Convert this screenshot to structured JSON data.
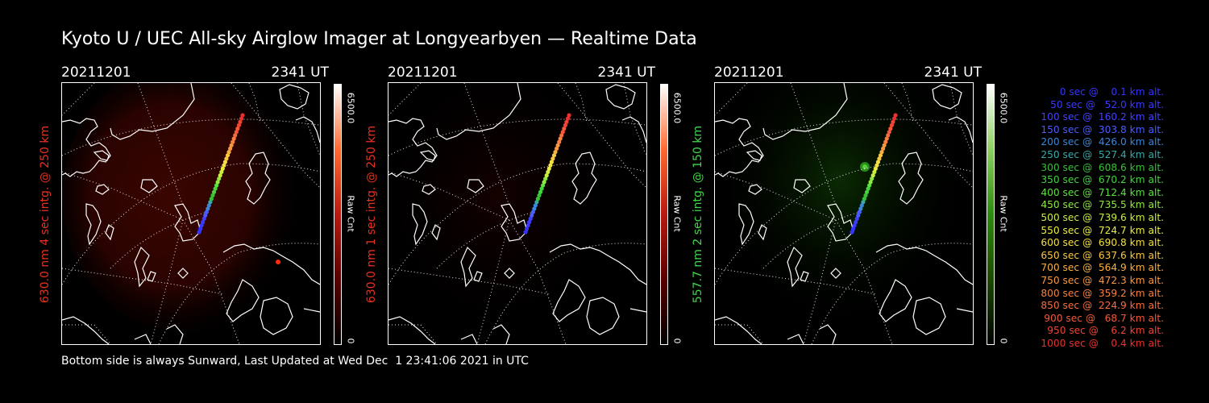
{
  "title": "Kyoto U / UEC All-sky Airglow Imager at Longyearbyen — Realtime Data",
  "footer": "Bottom side is always Sunward, Last Updated at Wed Dec  1 23:41:06 2021 in UTC",
  "panels": [
    {
      "date": "20211201",
      "time": "2341 UT",
      "ylabel": "630.0 nm 4 sec intg. @ 250 km",
      "label_color": "#e83020",
      "cbar_max": "6500.0",
      "cbar_unit": "Raw Cnt",
      "cbar_min": "0",
      "colormap": [
        "#000000",
        "#5a0000",
        "#b81a10",
        "#ff6a30",
        "#ffffff"
      ]
    },
    {
      "date": "20211201",
      "time": "2341 UT",
      "ylabel": "630.0 nm 1 sec intg. @ 250 km",
      "label_color": "#e83020",
      "cbar_max": "6500.0",
      "cbar_unit": "Raw Cnt",
      "cbar_min": "0",
      "colormap": [
        "#000000",
        "#5a0000",
        "#b81a10",
        "#ff6a30",
        "#ffffff"
      ]
    },
    {
      "date": "20211201",
      "time": "2341 UT",
      "ylabel": "557.7 nm 2 sec intg. @ 150 km",
      "label_color": "#3ed84a",
      "cbar_max": "6500.0",
      "cbar_unit": "Raw Cnt",
      "cbar_min": "0",
      "colormap": [
        "#000000",
        "#1a4a00",
        "#2e8a10",
        "#8ad060",
        "#ffffff"
      ]
    }
  ],
  "legend": [
    {
      "text": "0 sec @    0.1 km alt.",
      "color": "#3434ff"
    },
    {
      "text": "50 sec @   52.0 km alt.",
      "color": "#3a3aff"
    },
    {
      "text": "100 sec @  160.2 km alt.",
      "color": "#4040ff"
    },
    {
      "text": "150 sec @  303.8 km alt.",
      "color": "#4a5cff"
    },
    {
      "text": "200 sec @  426.0 km alt.",
      "color": "#3a86d8"
    },
    {
      "text": "250 sec @  527.4 km alt.",
      "color": "#3aa8a8"
    },
    {
      "text": "300 sec @  608.6 km alt.",
      "color": "#38c038"
    },
    {
      "text": "350 sec @  670.2 km alt.",
      "color": "#44d440"
    },
    {
      "text": "400 sec @  712.4 km alt.",
      "color": "#5ce040"
    },
    {
      "text": "450 sec @  735.5 km alt.",
      "color": "#8ee840"
    },
    {
      "text": "500 sec @  739.6 km alt.",
      "color": "#c8ee40"
    },
    {
      "text": "550 sec @  724.7 km alt.",
      "color": "#eaee40"
    },
    {
      "text": "600 sec @  690.8 km alt.",
      "color": "#f4e040"
    },
    {
      "text": "650 sec @  637.6 km alt.",
      "color": "#f8c840"
    },
    {
      "text": "700 sec @  564.9 km alt.",
      "color": "#fab040"
    },
    {
      "text": "750 sec @  472.3 km alt.",
      "color": "#fa9840"
    },
    {
      "text": "800 sec @  359.2 km alt.",
      "color": "#f88040"
    },
    {
      "text": "850 sec @  224.9 km alt.",
      "color": "#f66c3c"
    },
    {
      "text": "900 sec @   68.7 km alt.",
      "color": "#f45838"
    },
    {
      "text": "950 sec @    6.2 km alt.",
      "color": "#f04434"
    },
    {
      "text": "1000 sec @    0.4 km alt.",
      "color": "#ec3030"
    }
  ]
}
